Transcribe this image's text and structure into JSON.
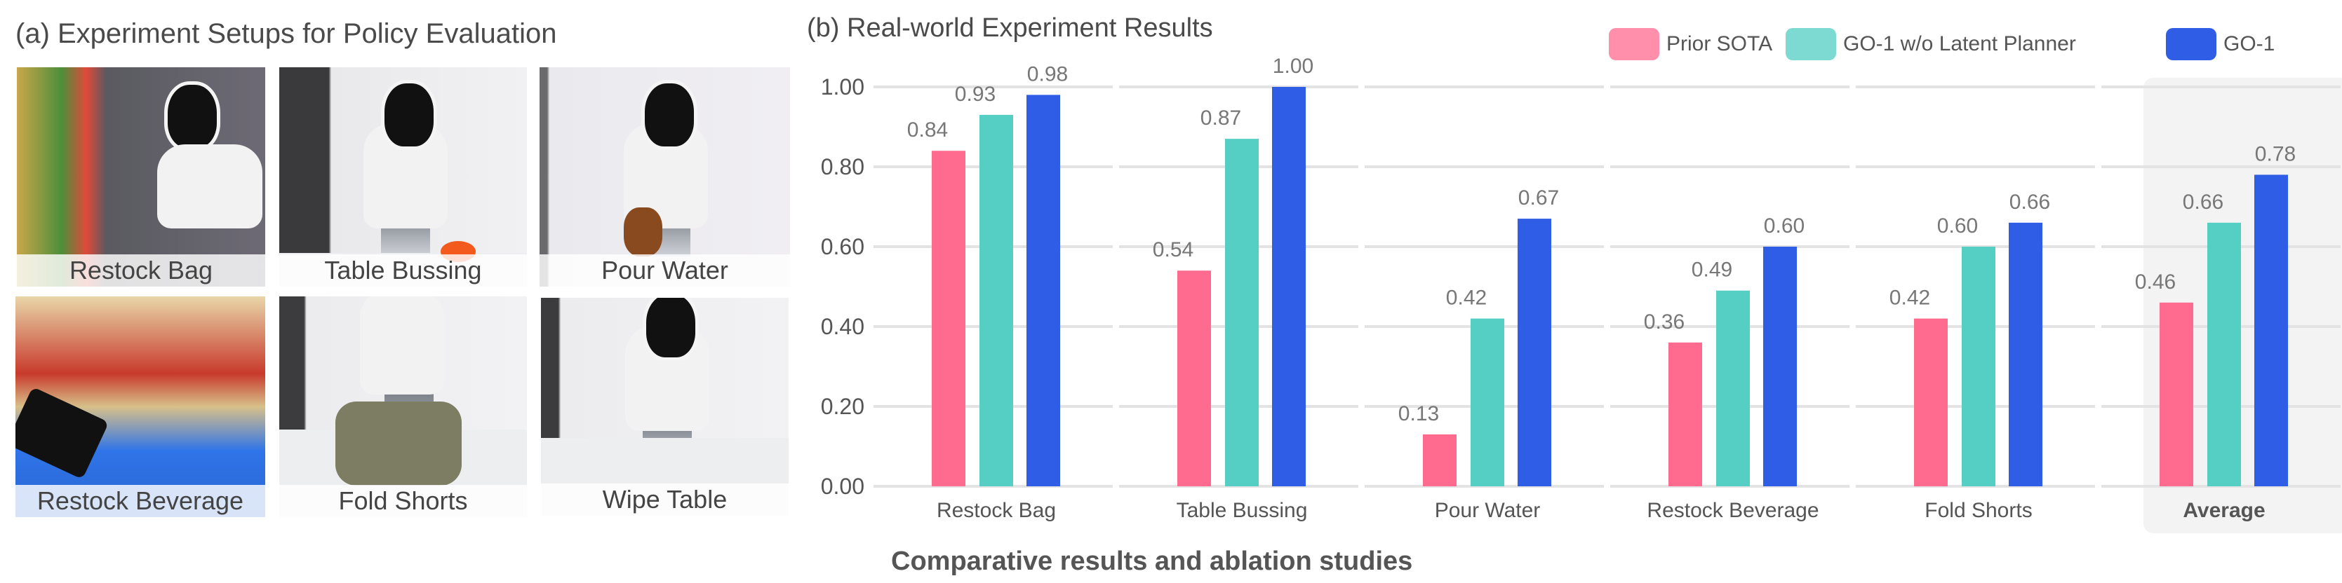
{
  "panel_a": {
    "title": "(a) Experiment Setups for Policy Evaluation",
    "tiles": [
      {
        "label": "Restock Bag"
      },
      {
        "label": "Table Bussing"
      },
      {
        "label": "Pour Water"
      },
      {
        "label": "Restock Beverage"
      },
      {
        "label": "Fold Shorts"
      },
      {
        "label": "Wipe Table"
      }
    ]
  },
  "caption": "Comparative results and ablation studies",
  "chart_data": {
    "type": "bar",
    "title": "(b) Real-world Experiment Results",
    "xlabel": "",
    "ylabel": "",
    "ylim": [
      0,
      1.0
    ],
    "yticks": [
      "0.00",
      "0.20",
      "0.40",
      "0.60",
      "0.80",
      "1.00"
    ],
    "grid": true,
    "legend_position": "top-right",
    "highlighted_category": "Average",
    "categories": [
      "Restock Bag",
      "Table Bussing",
      "Pour Water",
      "Restock Beverage",
      "Fold Shorts",
      "Average"
    ],
    "series": [
      {
        "name": "Prior SOTA",
        "color": "#ff6b8e",
        "values": [
          0.84,
          0.54,
          0.13,
          0.36,
          0.42,
          0.46
        ]
      },
      {
        "name": "GO-1 w/o Latent Planner",
        "color": "#55cfc4",
        "values": [
          0.93,
          0.87,
          0.42,
          0.49,
          0.6,
          0.66
        ]
      },
      {
        "name": "GO-1",
        "color": "#2f5de6",
        "values": [
          0.98,
          1.0,
          0.67,
          0.6,
          0.66,
          0.78
        ]
      }
    ]
  }
}
